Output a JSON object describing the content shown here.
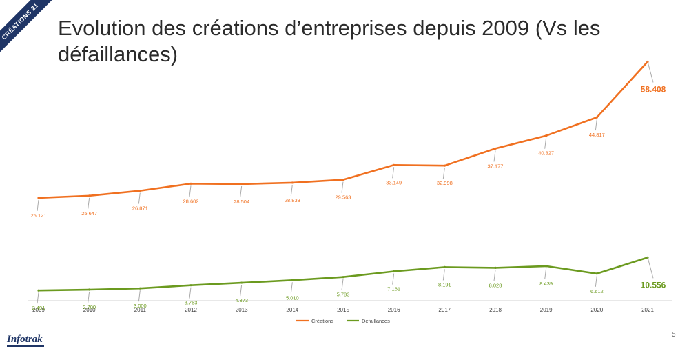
{
  "badge": "CRÉATIONS 21",
  "title": "Evolution des créations d’entreprises depuis 2009 (Vs les défaillances)",
  "logo": "Infotrak",
  "page_number": "5",
  "chart_data": {
    "type": "line",
    "title": "Evolution des créations d’entreprises depuis 2009 (Vs les défaillances)",
    "x": [
      "2009",
      "2010",
      "2011",
      "2012",
      "2013",
      "2014",
      "2015",
      "2016",
      "2017",
      "2018",
      "2019",
      "2020",
      "2021"
    ],
    "series": [
      {
        "name": "Créations",
        "color": "#f07020",
        "values": [
          25121,
          25647,
          26871,
          28602,
          28504,
          28833,
          29563,
          33149,
          32998,
          37177,
          40327,
          44817,
          58408
        ],
        "labels": [
          "25.121",
          "25.647",
          "26.871",
          "28.602",
          "28.504",
          "28.833",
          "29.563",
          "33.149",
          "32.998",
          "37.177",
          "40.327",
          "44.817",
          "58.408"
        ]
      },
      {
        "name": "Défaillances",
        "color": "#6b9a1f",
        "values": [
          2491,
          2700,
          3000,
          3763,
          4373,
          5010,
          5783,
          7161,
          8191,
          8028,
          8439,
          6612,
          10556
        ],
        "labels": [
          "2.491",
          "2.700",
          "3.000",
          "3.763",
          "4.373",
          "5.010",
          "5.783",
          "7.161",
          "8.191",
          "8.028",
          "8.439",
          "6.612",
          "10.556"
        ]
      }
    ],
    "ylim": [
      0,
      60000
    ],
    "grid": false,
    "legend_position": "bottom"
  }
}
